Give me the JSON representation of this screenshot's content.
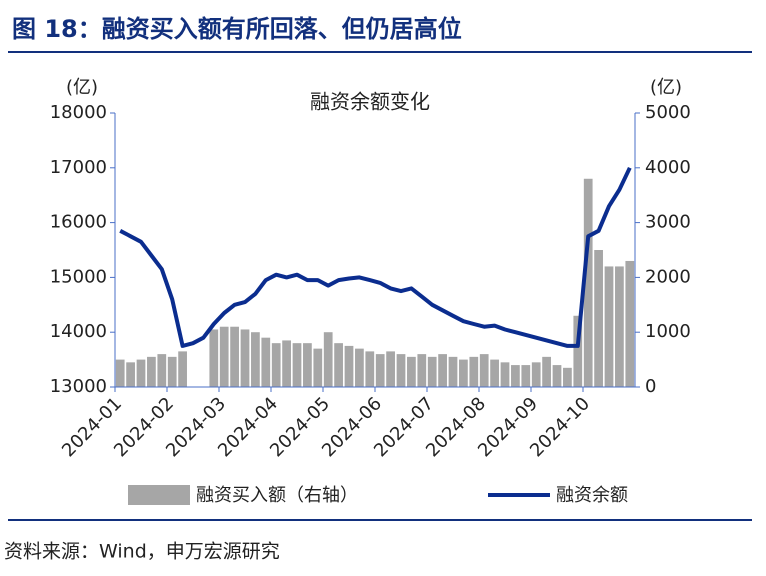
{
  "header": {
    "title": "图 18：融资买入额有所回落、但仍居高位"
  },
  "chart_data": {
    "type": "combo",
    "title": "融资余额变化",
    "y_label": "(亿)",
    "y2_label": "(亿)",
    "categories": [
      "2024-01",
      null,
      null,
      null,
      null,
      "2024-02",
      null,
      null,
      null,
      null,
      "2024-03",
      null,
      null,
      null,
      null,
      "2024-04",
      null,
      null,
      null,
      null,
      "2024-05",
      null,
      null,
      null,
      null,
      "2024-06",
      null,
      null,
      null,
      null,
      "2024-07",
      null,
      null,
      null,
      null,
      "2024-08",
      null,
      null,
      null,
      null,
      "2024-09",
      null,
      null,
      null,
      null,
      "2024-10",
      null,
      null,
      null,
      null
    ],
    "series": [
      {
        "name": "融资买入额（右轴）",
        "type": "bar",
        "axis": "y2",
        "color": "#a6a6a6",
        "values": [
          500,
          450,
          500,
          550,
          600,
          550,
          650,
          null,
          null,
          1050,
          1100,
          1100,
          1050,
          1000,
          900,
          800,
          850,
          800,
          800,
          700,
          1000,
          800,
          750,
          700,
          650,
          600,
          650,
          600,
          550,
          600,
          550,
          600,
          550,
          500,
          550,
          600,
          500,
          450,
          400,
          400,
          450,
          550,
          400,
          350,
          1300,
          3800,
          2500,
          2200,
          2200,
          2300
        ]
      },
      {
        "name": "融资余额",
        "type": "line",
        "color": "#0b2d8f",
        "values": [
          15850,
          15750,
          15650,
          15400,
          15150,
          14600,
          13750,
          13800,
          13900,
          14150,
          14350,
          14500,
          14550,
          14700,
          14950,
          15050,
          15000,
          15050,
          14950,
          14950,
          14850,
          14950,
          14980,
          15000,
          14950,
          14900,
          14800,
          14750,
          14800,
          14650,
          14500,
          14400,
          14300,
          14200,
          14150,
          14100,
          14120,
          14050,
          14000,
          13950,
          13900,
          13850,
          13800,
          13750,
          13750,
          15750,
          15850,
          16300,
          16600,
          17000
        ]
      }
    ],
    "ylim": [
      13000,
      18000
    ],
    "yticks": [
      13000,
      14000,
      15000,
      16000,
      17000,
      18000
    ],
    "y2lim": [
      0,
      5000
    ],
    "y2ticks": [
      0,
      1000,
      2000,
      3000,
      4000,
      5000
    ]
  },
  "source": "资料来源：Wind，申万宏源研究"
}
